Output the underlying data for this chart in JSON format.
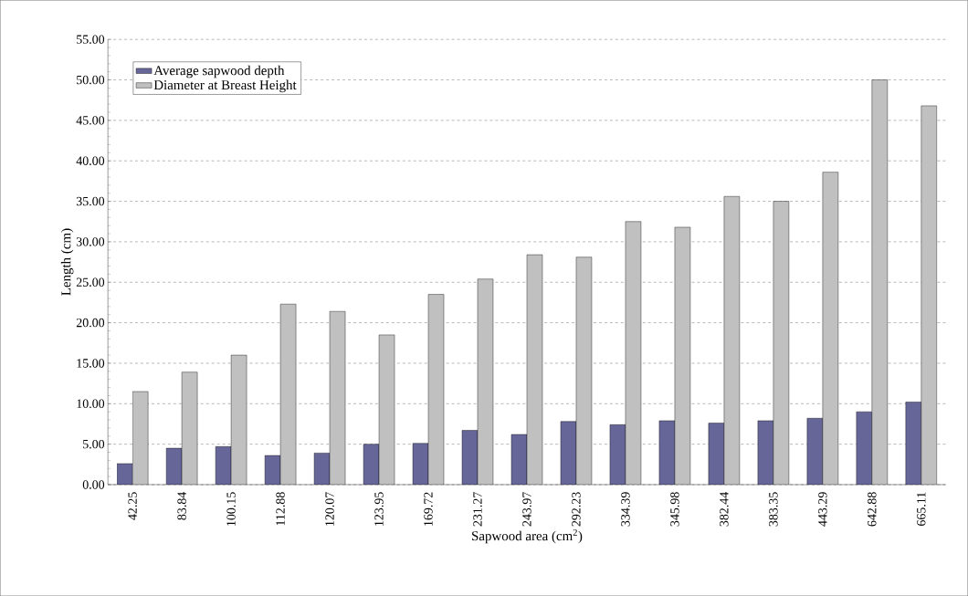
{
  "chart_data": {
    "type": "bar",
    "xlabel": "Sapwood area (cm$^{2}$)",
    "ylabel": "Length (cm)",
    "categories": [
      "42.25",
      "83.84",
      "100.15",
      "112.88",
      "120.07",
      "123.95",
      "169.72",
      "231.27",
      "243.97",
      "292.23",
      "334.39",
      "345.98",
      "382.44",
      "383.35",
      "443.29",
      "642.88",
      "665.11"
    ],
    "series": [
      {
        "name": "Average sapwood depth",
        "color": "#666699",
        "values": [
          2.6,
          4.5,
          4.7,
          3.6,
          3.9,
          5.0,
          5.1,
          6.7,
          6.2,
          7.8,
          7.4,
          7.9,
          7.6,
          7.9,
          8.2,
          9.0,
          10.2
        ]
      },
      {
        "name": "Diameter at Breast Height",
        "color": "#c0c0c0",
        "values": [
          11.5,
          13.9,
          16.0,
          22.3,
          21.4,
          18.5,
          23.5,
          25.4,
          28.4,
          28.1,
          32.5,
          31.8,
          35.6,
          35.0,
          38.6,
          50.0,
          46.8
        ]
      }
    ],
    "ylim": [
      0,
      55
    ],
    "yticks": [
      {
        "value": 0,
        "label": "0.00"
      },
      {
        "value": 5,
        "label": "5.00"
      },
      {
        "value": 10,
        "label": "10.00"
      },
      {
        "value": 15,
        "label": "15.00"
      },
      {
        "value": 20,
        "label": "20.00"
      },
      {
        "value": 25,
        "label": "25.00"
      },
      {
        "value": 30,
        "label": "30.00"
      },
      {
        "value": 35,
        "label": "35.00"
      },
      {
        "value": 40,
        "label": "40.00"
      },
      {
        "value": 45,
        "label": "45.00"
      },
      {
        "value": 50,
        "label": "50.00"
      },
      {
        "value": 55,
        "label": "55.00"
      }
    ],
    "grid": "y",
    "legend": "top left"
  }
}
